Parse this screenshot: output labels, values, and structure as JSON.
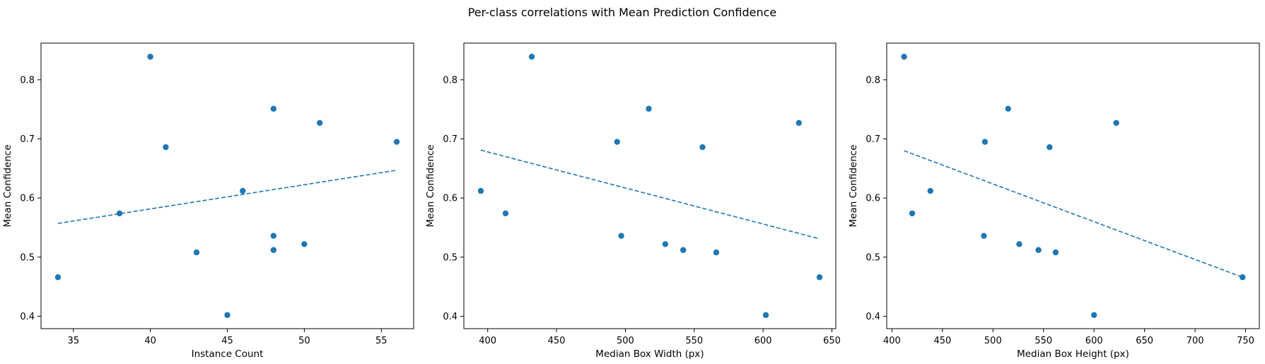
{
  "figure": {
    "suptitle": "Per-class correlations with Mean Prediction Confidence"
  },
  "colors": {
    "point": "#1f77b4",
    "trend": "#1f77b4",
    "axes": "#000000"
  },
  "chart_data": [
    {
      "type": "scatter",
      "title": "",
      "xlabel": "Instance Count",
      "ylabel": "Mean Confidence",
      "xlim": [
        32.9,
        57.1
      ],
      "ylim": [
        0.379,
        0.862
      ],
      "xticks": [
        35,
        40,
        45,
        50,
        55
      ],
      "yticks": [
        0.4,
        0.5,
        0.6,
        0.7,
        0.8
      ],
      "grid": false,
      "points": [
        {
          "x": 34,
          "y": 0.466
        },
        {
          "x": 38,
          "y": 0.574
        },
        {
          "x": 40,
          "y": 0.839
        },
        {
          "x": 41,
          "y": 0.686
        },
        {
          "x": 43,
          "y": 0.508
        },
        {
          "x": 45,
          "y": 0.402
        },
        {
          "x": 46,
          "y": 0.612
        },
        {
          "x": 48,
          "y": 0.751
        },
        {
          "x": 48,
          "y": 0.536
        },
        {
          "x": 48,
          "y": 0.512
        },
        {
          "x": 50,
          "y": 0.522
        },
        {
          "x": 51,
          "y": 0.727
        },
        {
          "x": 56,
          "y": 0.695
        }
      ],
      "trendline": {
        "x": [
          34,
          56
        ],
        "y": [
          0.557,
          0.647
        ],
        "style": "dashed"
      }
    },
    {
      "type": "scatter",
      "title": "",
      "xlabel": "Median Box Width (px)",
      "ylabel": "Mean Confidence",
      "xlim": [
        382.7,
        652.8
      ],
      "ylim": [
        0.379,
        0.862
      ],
      "xticks": [
        400,
        450,
        500,
        550,
        600,
        650
      ],
      "yticks": [
        0.4,
        0.5,
        0.6,
        0.7,
        0.8
      ],
      "grid": false,
      "points": [
        {
          "x": 395,
          "y": 0.612
        },
        {
          "x": 413,
          "y": 0.574
        },
        {
          "x": 432,
          "y": 0.839
        },
        {
          "x": 494,
          "y": 0.695
        },
        {
          "x": 497,
          "y": 0.536
        },
        {
          "x": 517,
          "y": 0.751
        },
        {
          "x": 529,
          "y": 0.522
        },
        {
          "x": 542,
          "y": 0.512
        },
        {
          "x": 556,
          "y": 0.686
        },
        {
          "x": 566,
          "y": 0.508
        },
        {
          "x": 602,
          "y": 0.402
        },
        {
          "x": 626,
          "y": 0.727
        },
        {
          "x": 641,
          "y": 0.466
        }
      ],
      "trendline": {
        "x": [
          395,
          641
        ],
        "y": [
          0.681,
          0.531
        ],
        "style": "dashed"
      }
    },
    {
      "type": "scatter",
      "title": "",
      "xlabel": "Median Box Height (px)",
      "ylabel": "Mean Confidence",
      "xlim": [
        394.8,
        763.6
      ],
      "ylim": [
        0.379,
        0.862
      ],
      "xticks": [
        400,
        450,
        500,
        550,
        600,
        650,
        700,
        750
      ],
      "yticks": [
        0.4,
        0.5,
        0.6,
        0.7,
        0.8
      ],
      "grid": false,
      "points": [
        {
          "x": 412,
          "y": 0.839
        },
        {
          "x": 420,
          "y": 0.574
        },
        {
          "x": 438,
          "y": 0.612
        },
        {
          "x": 491,
          "y": 0.536
        },
        {
          "x": 492,
          "y": 0.695
        },
        {
          "x": 515,
          "y": 0.751
        },
        {
          "x": 526,
          "y": 0.522
        },
        {
          "x": 545,
          "y": 0.512
        },
        {
          "x": 556,
          "y": 0.686
        },
        {
          "x": 562,
          "y": 0.508
        },
        {
          "x": 600,
          "y": 0.402
        },
        {
          "x": 622,
          "y": 0.727
        },
        {
          "x": 747,
          "y": 0.466
        }
      ],
      "trendline": {
        "x": [
          412,
          747
        ],
        "y": [
          0.68,
          0.466
        ],
        "style": "dashed"
      }
    }
  ]
}
